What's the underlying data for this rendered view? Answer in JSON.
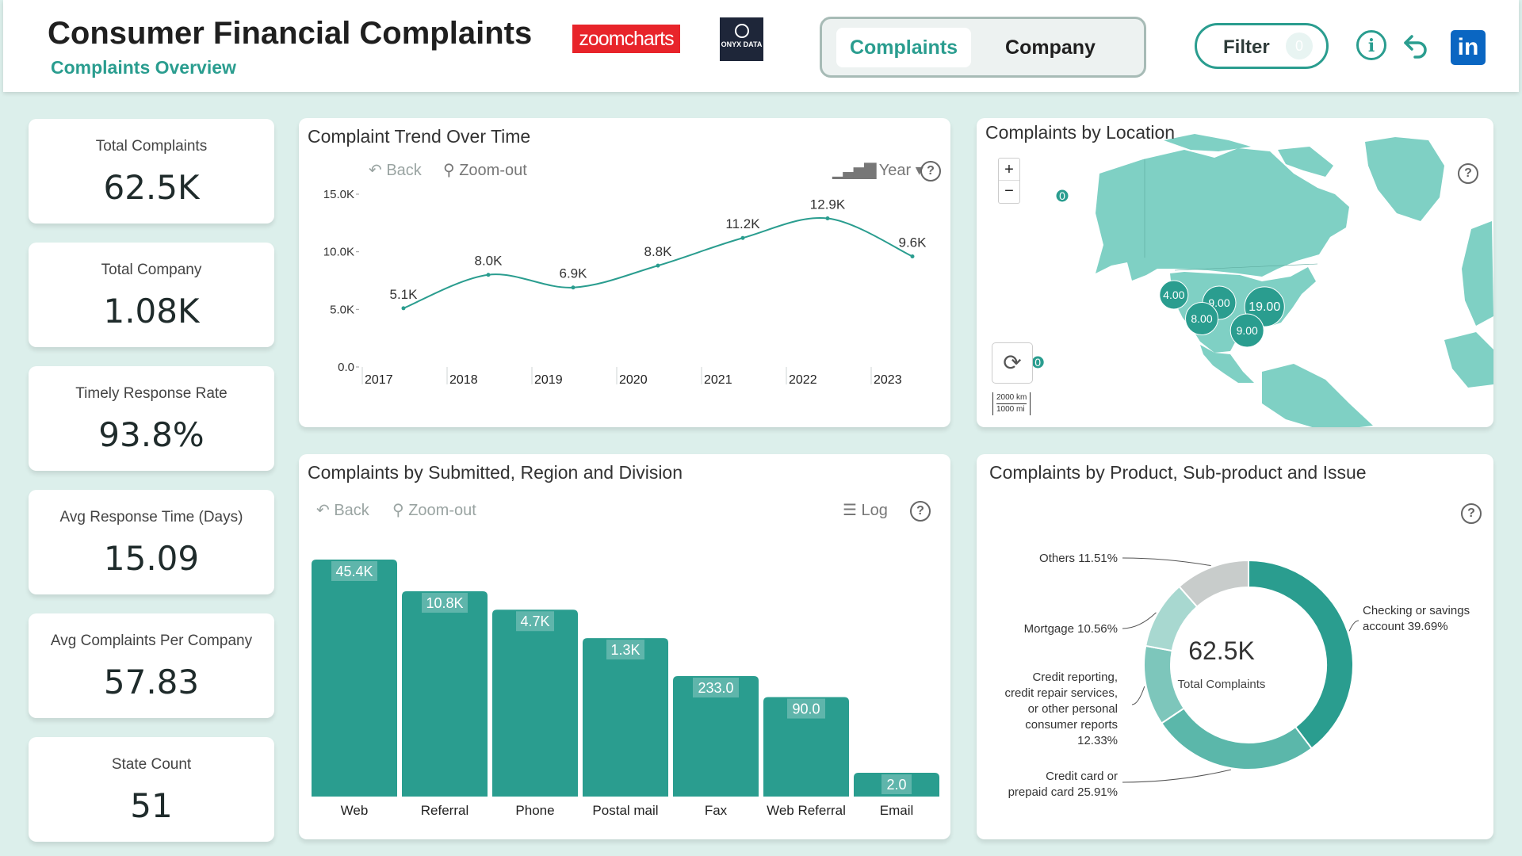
{
  "header": {
    "title": "Consumer Financial Complaints",
    "subtitle": "Complaints Overview",
    "logo_zoomcharts": "zoomcharts",
    "logo_onyx": "ONYX DATA",
    "tabs": [
      {
        "label": "Complaints",
        "active": true
      },
      {
        "label": "Company",
        "active": false
      }
    ],
    "filter_label": "Filter",
    "filter_count": "0",
    "icons": [
      "info-icon",
      "undo-icon",
      "linkedin-icon"
    ],
    "accent_color": "#2a9d8f"
  },
  "kpis": [
    {
      "label": "Total Complaints",
      "value": "62.5K"
    },
    {
      "label": "Total Company",
      "value": "1.08K"
    },
    {
      "label": "Timely Response Rate",
      "value": "93.8%"
    },
    {
      "label": "Avg Response Time (Days)",
      "value": "15.09"
    },
    {
      "label": "Avg Complaints Per Company",
      "value": "57.83"
    },
    {
      "label": "State Count",
      "value": "51"
    }
  ],
  "trend_panel": {
    "title": "Complaint Trend Over Time",
    "back": "Back",
    "zoom_out": "Zoom-out",
    "granularity": "Year"
  },
  "location_panel": {
    "title": "Complaints by Location",
    "zoom_in": "+",
    "zoom_out": "−",
    "scale_km": "2000 km",
    "scale_mi": "1000 mi",
    "bubbles": [
      {
        "label": "0",
        "lon": -150,
        "lat": 62
      },
      {
        "label": "4.00",
        "lon": -118,
        "lat": 37
      },
      {
        "label": "9.00",
        "lon": -105,
        "lat": 35
      },
      {
        "label": "8.00",
        "lon": -110,
        "lat": 31
      },
      {
        "label": "19.00",
        "lon": -92,
        "lat": 34
      },
      {
        "label": "9.00",
        "lon": -97,
        "lat": 28
      },
      {
        "label": "0",
        "lon": -157,
        "lat": 20
      }
    ]
  },
  "channel_panel": {
    "title": "Complaints by Submitted, Region and Division",
    "back": "Back",
    "zoom_out": "Zoom-out",
    "scale": "Log"
  },
  "product_panel": {
    "title": "Complaints by Product, Sub-product and Issue",
    "center_value": "62.5K",
    "center_label": "Total Complaints"
  },
  "chart_data": [
    {
      "type": "line",
      "title": "Complaint Trend Over Time",
      "x": [
        "2017",
        "2018",
        "2019",
        "2020",
        "2021",
        "2022",
        "2023"
      ],
      "y": [
        5100,
        8000,
        6900,
        8800,
        11200,
        12900,
        9600
      ],
      "data_labels": [
        "5.1K",
        "8.0K",
        "6.9K",
        "8.8K",
        "11.2K",
        "12.9K",
        "9.6K"
      ],
      "ylim": [
        0,
        15000
      ],
      "yticks": [
        "0.0",
        "5.0K",
        "10.0K",
        "15.0K"
      ],
      "color": "#2a9d8f"
    },
    {
      "type": "bar",
      "title": "Complaints by Submitted, Region and Division",
      "categories": [
        "Web",
        "Referral",
        "Phone",
        "Postal mail",
        "Fax",
        "Web Referral",
        "Email"
      ],
      "values": [
        45400,
        10800,
        4700,
        1300,
        233,
        90,
        2
      ],
      "data_labels": [
        "45.4K",
        "10.8K",
        "4.7K",
        "1.3K",
        "233.0",
        "90.0",
        "2.0"
      ],
      "scale": "log",
      "color": "#2a9d8f"
    },
    {
      "type": "pie",
      "title": "Complaints by Product, Sub-product and Issue",
      "slices": [
        {
          "label": "Checking or savings account",
          "percent": 39.69,
          "text": "Checking or savings account 39.69%",
          "color": "#2a9d8f"
        },
        {
          "label": "Credit card or prepaid card",
          "percent": 25.91,
          "text": "Credit card or prepaid card 25.91%",
          "color": "#5bb7aa"
        },
        {
          "label": "Credit reporting, credit repair services, or other personal consumer reports",
          "percent": 12.33,
          "text": "Credit reporting, credit repair services, or other personal consumer reports 12.33%",
          "color": "#7dc6bb"
        },
        {
          "label": "Mortgage",
          "percent": 10.56,
          "text": "Mortgage 10.56%",
          "color": "#a8d8d0"
        },
        {
          "label": "Others",
          "percent": 11.51,
          "text": "Others 11.51%",
          "color": "#c8cccb"
        }
      ],
      "total": "62.5K"
    }
  ]
}
